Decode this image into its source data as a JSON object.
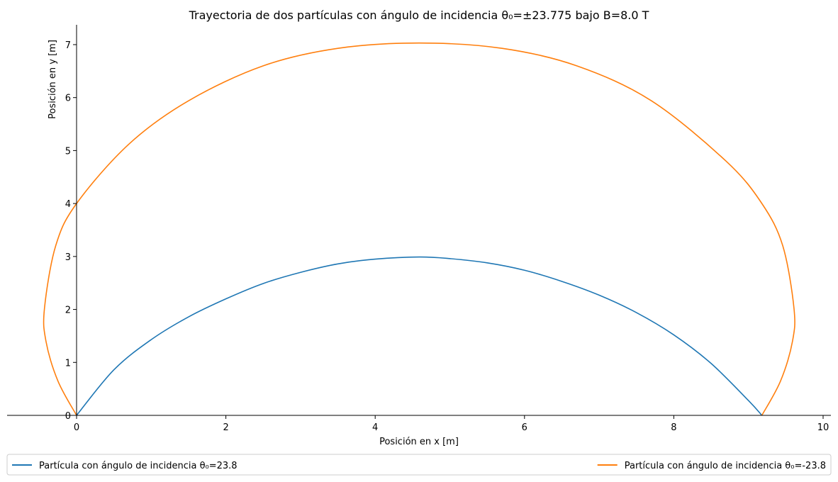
{
  "chart_data": {
    "type": "line",
    "title": "Trayectoria de dos partículas con ángulo de incidencia θ₀=±23.775 bajo B=8.0 T",
    "xlabel": "Posición en x [m]",
    "ylabel": "Posición en y [m]",
    "xlim": [
      -0.93,
      10.1
    ],
    "ylim": [
      0,
      7.4
    ],
    "xticks": [
      0,
      2,
      4,
      6,
      8,
      10
    ],
    "yticks": [
      0,
      1,
      2,
      3,
      4,
      5,
      6,
      7
    ],
    "grid": false,
    "legend_placement": "below",
    "series": [
      {
        "name": "Partícula con ángulo de incidencia θ₀=23.8",
        "color": "#1f77b4",
        "x": [
          0.0,
          0.5,
          1.0,
          1.5,
          2.0,
          2.5,
          3.0,
          3.5,
          4.0,
          4.59,
          5.0,
          5.5,
          6.0,
          6.5,
          7.0,
          7.5,
          8.0,
          8.5,
          9.0,
          9.18
        ],
        "y": [
          0.0,
          0.86,
          1.43,
          1.86,
          2.2,
          2.49,
          2.7,
          2.86,
          2.95,
          2.99,
          2.96,
          2.88,
          2.74,
          2.53,
          2.27,
          1.94,
          1.52,
          0.98,
          0.28,
          0.0
        ]
      },
      {
        "name": "Partícula con ángulo de incidencia θ₀=-23.8",
        "color": "#ff7f0e",
        "x": [
          0.0,
          -0.25,
          -0.41,
          -0.43,
          -0.28,
          0.0,
          0.7,
          1.5,
          2.5,
          3.5,
          4.59,
          5.7,
          6.7,
          7.7,
          8.7,
          9.18,
          9.46,
          9.61,
          9.59,
          9.43,
          9.18
        ],
        "y": [
          0.0,
          0.65,
          1.4,
          2.02,
          3.2,
          4.0,
          5.12,
          5.94,
          6.6,
          6.93,
          7.03,
          6.93,
          6.6,
          5.94,
          4.8,
          4.0,
          3.2,
          2.02,
          1.4,
          0.65,
          0.0
        ]
      }
    ]
  }
}
